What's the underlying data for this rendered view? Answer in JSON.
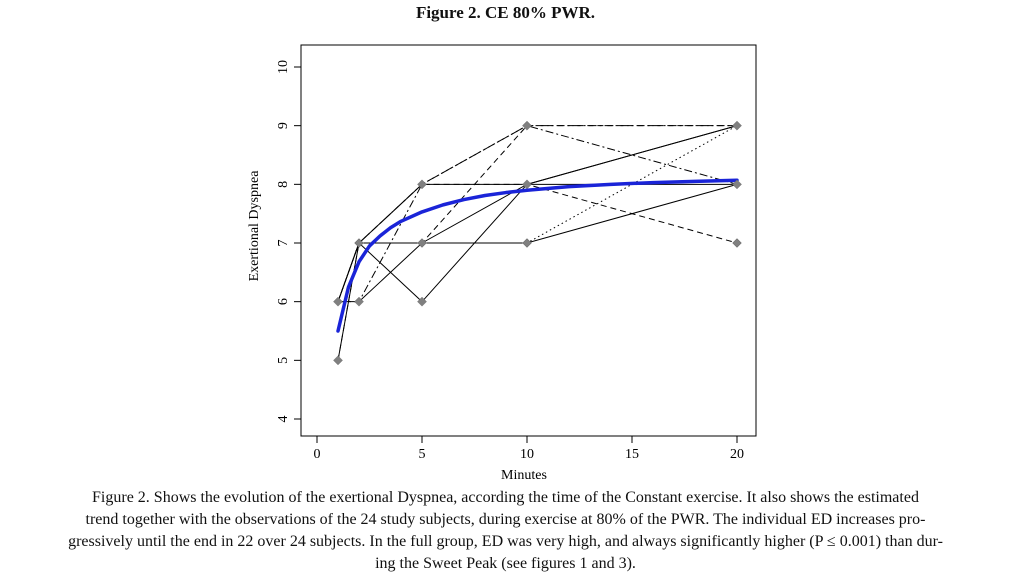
{
  "figure": {
    "title": "Figure 2. CE 80% PWR.",
    "caption_lines": [
      "Figure 2. Shows the evolution of the exertional Dyspnea, according the time of the Constant exercise. It also shows the estimated",
      "trend together with the observations of the 24 study subjects, during exercise at 80% of the PWR. The individual ED increases pro-",
      "gressively until the end in 22 over 24 subjects. In the full group, ED was very high, and always significantly higher (P ≤ 0.001) than dur-",
      "ing the Sweet Peak (see figures 1 and 3)."
    ]
  },
  "chart_data": {
    "type": "line",
    "xlabel": "Minutes",
    "ylabel": "Exertional Dyspnea",
    "xlim": [
      0,
      20
    ],
    "ylim": [
      4,
      10
    ],
    "xticks": [
      0,
      5,
      10,
      15,
      20
    ],
    "yticks": [
      4,
      5,
      6,
      7,
      8,
      9,
      10
    ],
    "grid": false,
    "x": [
      1,
      2,
      5,
      10,
      20
    ],
    "series": [
      {
        "values": [
          6,
          7,
          8,
          8,
          9
        ],
        "style": "solid"
      },
      {
        "values": [
          5,
          7,
          7,
          7,
          8
        ],
        "style": "solid"
      },
      {
        "values": [
          6,
          6,
          7,
          8,
          9
        ],
        "style": "solid"
      },
      {
        "values": [
          6,
          7,
          6,
          8,
          8
        ],
        "style": "solid"
      },
      {
        "values": [
          6,
          7,
          8,
          9,
          8
        ],
        "style": "dashdot"
      },
      {
        "values": [
          5,
          7,
          7,
          9,
          9
        ],
        "style": "dashed"
      },
      {
        "values": [
          6,
          7,
          8,
          8,
          7
        ],
        "style": "dashed"
      },
      {
        "values": [
          6,
          7,
          7,
          7,
          9
        ],
        "style": "dotted"
      },
      {
        "values": [
          6,
          6,
          8,
          9,
          9
        ],
        "style": "dashdot"
      }
    ],
    "marker_color": "#808080",
    "trend": {
      "color": "#1a24d8",
      "x": [
        1,
        1.5,
        2,
        2.5,
        3,
        3.5,
        4,
        5,
        6,
        7,
        8,
        9,
        10,
        12,
        14,
        16,
        18,
        20
      ],
      "values": [
        5.5,
        6.25,
        6.68,
        6.95,
        7.12,
        7.26,
        7.37,
        7.53,
        7.65,
        7.74,
        7.81,
        7.86,
        7.9,
        7.96,
        8.0,
        8.03,
        8.05,
        8.07
      ]
    }
  }
}
